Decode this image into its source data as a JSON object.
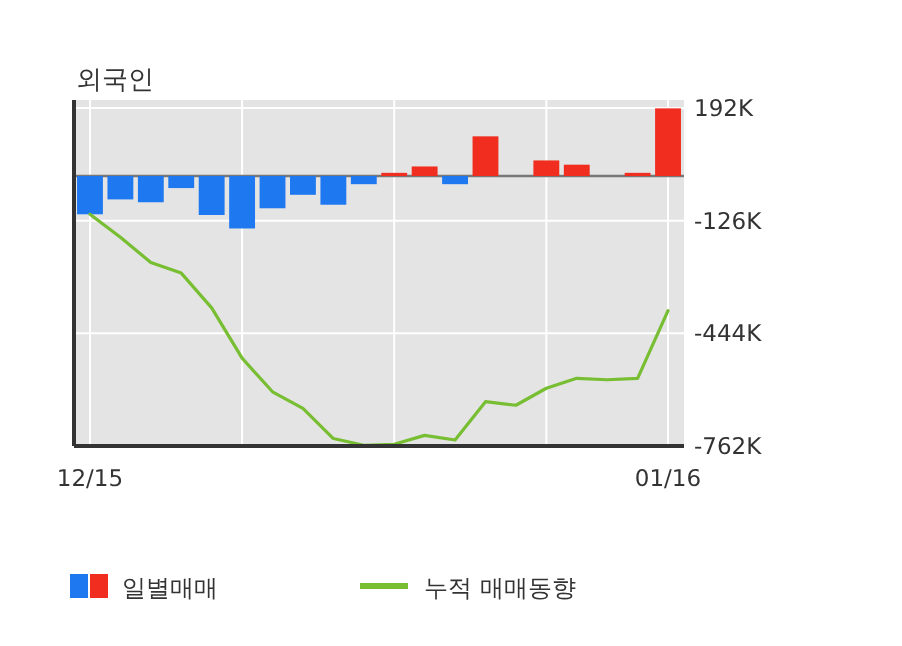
{
  "chart_data": {
    "type": "bar",
    "title": "외국인",
    "categories": [
      "12/15",
      null,
      null,
      null,
      null,
      null,
      null,
      null,
      null,
      null,
      null,
      null,
      null,
      null,
      null,
      null,
      null,
      null,
      null,
      "01/16"
    ],
    "series": [
      {
        "name": "일별매매",
        "colors": [
          "#1e78f0",
          "#1e78f0",
          "#1e78f0",
          "#1e78f0",
          "#1e78f0",
          "#1e78f0",
          "#1e78f0",
          "#1e78f0",
          "#1e78f0",
          "#1e78f0",
          "#f02d1e",
          "#f02d1e",
          "#1e78f0",
          "#f02d1e",
          "#f02d1e",
          "#f02d1e",
          "#f02d1e",
          "#f02d1e",
          "#f02d1e",
          "#f02d1e"
        ],
        "values": [
          -108000,
          -66000,
          -74000,
          -34000,
          -110000,
          -148000,
          -91000,
          -53000,
          -81000,
          -23000,
          9000,
          27000,
          -23000,
          112000,
          0,
          44000,
          32000,
          0,
          9000,
          191000
        ]
      },
      {
        "name": "누적 매매동향",
        "type": "line",
        "color": "#78be32",
        "values": [
          -108000,
          -173000,
          -244000,
          -274000,
          -372000,
          -514000,
          -609000,
          -656000,
          -741000,
          -760000,
          -757000,
          -732000,
          -745000,
          -637000,
          -647000,
          -599000,
          -571000,
          -575000,
          -571000,
          -380000
        ]
      }
    ],
    "ylim": [
      -762000,
      192000
    ],
    "yticks": [
      {
        "value": 192000,
        "label": "192K"
      },
      {
        "value": -126000,
        "label": "-126K"
      },
      {
        "value": -444000,
        "label": "-444K"
      },
      {
        "value": -762000,
        "label": "-762K"
      }
    ],
    "grid": true,
    "legend": "bottom"
  }
}
